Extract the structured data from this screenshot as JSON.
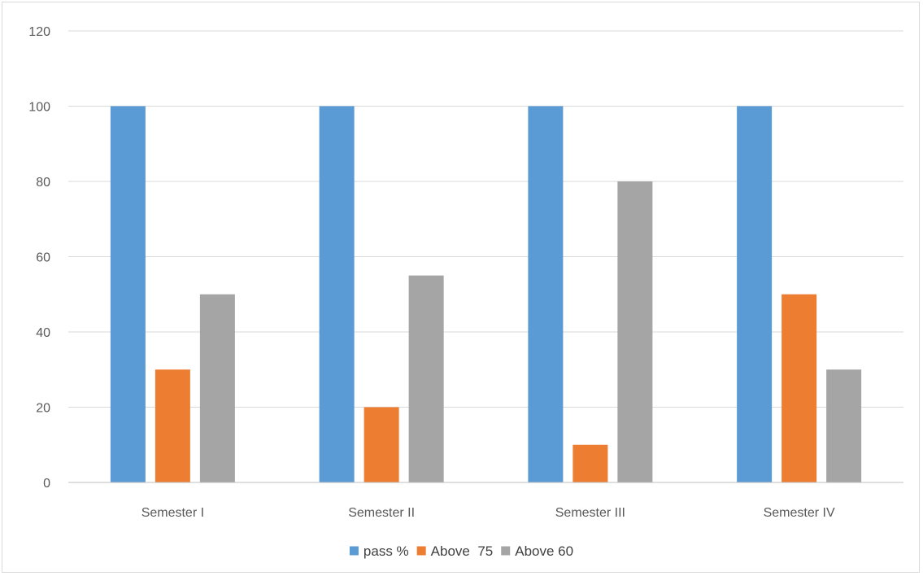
{
  "chart_data": {
    "type": "bar",
    "categories": [
      "Semester I",
      "Semester II",
      "Semester III",
      "Semester IV"
    ],
    "series": [
      {
        "name": "pass %",
        "values": [
          100,
          100,
          100,
          100
        ],
        "color": "#5b9bd5"
      },
      {
        "name": "Above  75",
        "values": [
          30,
          20,
          10,
          50
        ],
        "color": "#ed7d31"
      },
      {
        "name": "Above 60",
        "values": [
          50,
          55,
          80,
          30
        ],
        "color": "#a5a5a5"
      }
    ],
    "ylim": [
      0,
      120
    ],
    "yticks": [
      0,
      20,
      40,
      60,
      80,
      100,
      120
    ],
    "grid": true,
    "legend": "bottom"
  }
}
